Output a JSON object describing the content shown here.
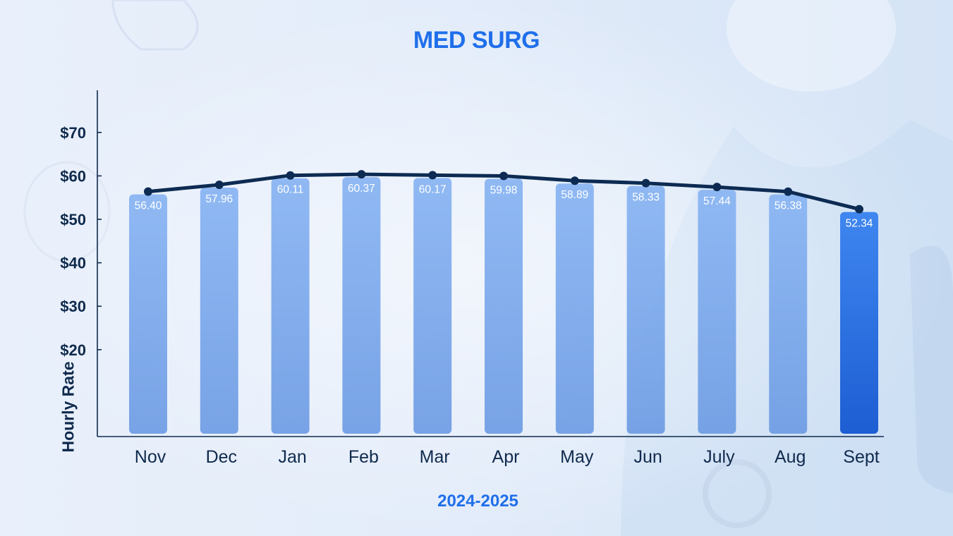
{
  "chart_data": {
    "type": "bar",
    "title": "MED SURG",
    "xlabel": "2024-2025",
    "ylabel": "Hourly Rate",
    "categories": [
      "Nov",
      "Dec",
      "Jan",
      "Feb",
      "Mar",
      "Apr",
      "May",
      "Jun",
      "July",
      "Aug",
      "Sept"
    ],
    "series": [
      {
        "values": [
          56.4,
          57.96,
          60.11,
          60.37,
          60.17,
          59.98,
          58.89,
          58.33,
          57.44,
          56.38,
          52.34
        ]
      }
    ],
    "data_labels": [
      "56.40",
      "57.96",
      "60.11",
      "60.37",
      "60.17",
      "59.98",
      "58.89",
      "58.33",
      "57.44",
      "56.38",
      "52.34"
    ],
    "overlay": "line",
    "highlight_category": "Sept",
    "yticks": [
      20,
      30,
      40,
      50,
      60,
      70
    ],
    "ytick_labels": [
      "$20",
      "$30",
      "$40",
      "$50",
      "$60",
      "$70"
    ],
    "grid": false,
    "legend": "none"
  },
  "colors": {
    "title": "#1f6fea",
    "axis_text": "#0f2a4d",
    "bar": "#7aa9ee",
    "bar_highlight": "#2f78e8",
    "line": "#0d2b52"
  }
}
